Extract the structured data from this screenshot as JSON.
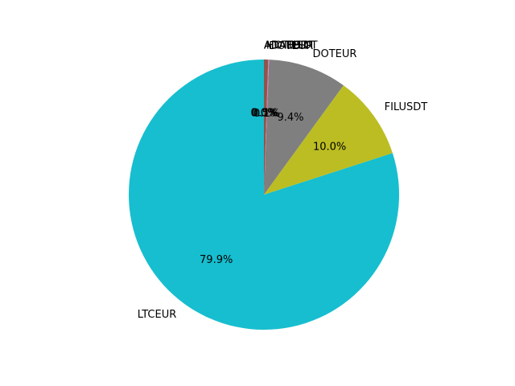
{
  "chart_data": {
    "type": "pie",
    "title": "",
    "start_angle_deg": 90,
    "counterclock": true,
    "slices": [
      {
        "label": "LTCEUR",
        "percent": 79.9,
        "pct_label": "79.9%",
        "color": "#17becf"
      },
      {
        "label": "FILUSDT",
        "percent": 10.0,
        "pct_label": "10.0%",
        "color": "#bcbd22"
      },
      {
        "label": "DOTEUR",
        "percent": 9.4,
        "pct_label": "9.4%",
        "color": "#7f7f7f"
      },
      {
        "label": "DOTEUR",
        "percent": 0.1,
        "pct_label": "0.1%",
        "color": "#e377c2"
      },
      {
        "label": "HOTUSDT",
        "percent": 0.5,
        "pct_label": "0.5%",
        "color": "#8c564b"
      },
      {
        "label": "ADAEUR",
        "percent": 0.0,
        "pct_label": "0.0%",
        "color": "#9467bd"
      },
      {
        "label": "ADAUSDT",
        "percent": 0.0,
        "pct_label": "0.0%",
        "color": "#d62728"
      },
      {
        "label": "ADAEUR",
        "percent": 0.0,
        "pct_label": "0.0%",
        "color": "#2ca02c"
      }
    ]
  }
}
